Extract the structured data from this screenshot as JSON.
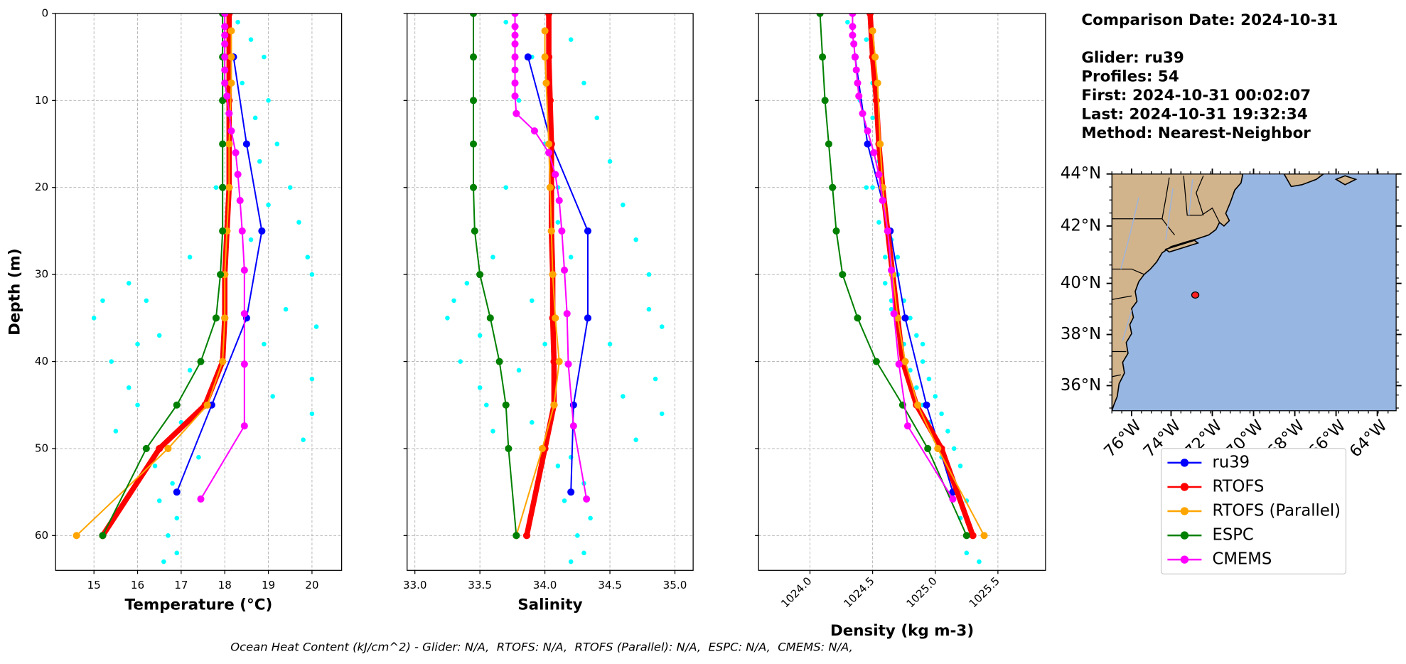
{
  "chart_data": [
    {
      "type": "profile",
      "xlabel": "Temperature (°C)",
      "ylabel": "Depth (m)",
      "xlim": [
        14.12,
        20.68
      ],
      "xticks": [
        15,
        16,
        17,
        18,
        19,
        20
      ],
      "ylim": [
        0,
        64
      ],
      "yticks": [
        0,
        10,
        20,
        30,
        40,
        50,
        60
      ],
      "y_inverted": true,
      "grid": true,
      "scatter": {
        "color": "#00ffff",
        "depth": [
          1,
          3,
          5,
          8,
          10,
          12,
          15,
          17,
          20,
          22,
          24,
          26,
          28,
          30,
          31,
          33,
          34,
          35,
          36,
          37,
          38,
          40,
          41,
          42,
          43,
          44,
          45,
          46,
          47,
          48,
          49,
          50,
          51,
          52,
          54,
          56,
          58,
          60,
          62,
          63,
          20,
          28,
          33,
          38
        ],
        "values": [
          18.3,
          18.6,
          18.9,
          18.4,
          19.0,
          18.7,
          19.2,
          18.8,
          19.5,
          19.0,
          19.7,
          18.6,
          19.9,
          20.0,
          15.8,
          15.2,
          19.4,
          15.0,
          20.1,
          16.5,
          18.9,
          15.4,
          17.2,
          20.0,
          15.8,
          19.1,
          16.0,
          20.0,
          17.0,
          15.5,
          19.8,
          16.2,
          17.4,
          16.4,
          16.8,
          16.5,
          16.9,
          16.7,
          16.9,
          16.6,
          17.8,
          17.2,
          16.2,
          16.0
        ]
      },
      "series": [
        {
          "name": "ru39",
          "color": "#0000ff",
          "depth": [
            5,
            15,
            25,
            35,
            45,
            55
          ],
          "values": [
            18.2,
            18.5,
            18.85,
            18.5,
            17.7,
            16.9
          ]
        },
        {
          "name": "RTOFS",
          "color": "#ff0000",
          "depth": [
            0,
            5,
            10,
            15,
            20,
            25,
            30,
            35,
            40,
            45,
            50,
            60
          ],
          "values": [
            18.1,
            18.1,
            18.1,
            18.1,
            18.1,
            18.05,
            18.0,
            18.0,
            17.95,
            17.55,
            16.5,
            15.2
          ]
        },
        {
          "name": "RTOFS (Parallel)",
          "color": "#ffa500",
          "depth": [
            2,
            5,
            8,
            15,
            20,
            25,
            30,
            35,
            40,
            45,
            50,
            60
          ],
          "values": [
            18.15,
            18.15,
            18.15,
            18.1,
            18.1,
            18.05,
            18.0,
            18.0,
            17.95,
            17.6,
            16.7,
            14.6
          ]
        },
        {
          "name": "ESPC",
          "color": "#008000",
          "depth": [
            0,
            5,
            10,
            15,
            20,
            25,
            30,
            35,
            40,
            45,
            50,
            60
          ],
          "values": [
            17.95,
            17.95,
            17.95,
            17.95,
            17.95,
            17.95,
            17.9,
            17.8,
            17.45,
            16.9,
            16.2,
            15.2
          ]
        },
        {
          "name": "CMEMS",
          "color": "#ff00ff",
          "depth": [
            0,
            1.5,
            2.5,
            3.5,
            5,
            6.5,
            8,
            9.5,
            11.5,
            13.5,
            16,
            18.5,
            21.5,
            25,
            29.5,
            34.5,
            40.3,
            47.4,
            55.8
          ],
          "values": [
            18.0,
            18.0,
            18.0,
            18.0,
            18.0,
            18.0,
            18.0,
            18.05,
            18.1,
            18.15,
            18.25,
            18.3,
            18.35,
            18.4,
            18.45,
            18.45,
            18.45,
            18.45,
            17.45
          ]
        }
      ]
    },
    {
      "type": "profile",
      "xlabel": "Salinity",
      "xlim": [
        32.94,
        35.14
      ],
      "xticks": [
        {
          "value": 33,
          "label": "33.0"
        },
        33.5,
        {
          "value": 34,
          "label": "34.0"
        },
        34.5,
        {
          "value": 35,
          "label": "35.0"
        }
      ],
      "scatter": {
        "color": "#00ffff",
        "depth": [
          1,
          3,
          5,
          8,
          10,
          12,
          15,
          17,
          20,
          22,
          24,
          26,
          28,
          30,
          31,
          33,
          34,
          35,
          36,
          37,
          38,
          40,
          41,
          42,
          43,
          44,
          45,
          46,
          47,
          48,
          49,
          50,
          51,
          52,
          54,
          56,
          58,
          60,
          62,
          63,
          20,
          28,
          33,
          38
        ],
        "values": [
          33.7,
          34.2,
          33.9,
          34.3,
          33.8,
          34.4,
          34.0,
          34.5,
          33.7,
          34.6,
          34.1,
          34.7,
          33.6,
          34.8,
          33.4,
          33.3,
          34.8,
          33.25,
          34.9,
          33.5,
          34.5,
          33.35,
          33.8,
          34.85,
          33.5,
          34.6,
          33.55,
          34.9,
          33.9,
          33.6,
          34.7,
          34.0,
          34.2,
          34.1,
          34.3,
          34.15,
          34.35,
          34.25,
          34.3,
          34.2,
          34.1,
          34.2,
          33.9,
          34.0
        ]
      },
      "series": [
        {
          "color": "#0000ff",
          "depth": [
            5,
            15,
            25,
            35,
            45,
            55
          ],
          "values": [
            33.87,
            34.05,
            34.33,
            34.33,
            34.22,
            34.2
          ]
        },
        {
          "color": "#ff0000",
          "depth": [
            0,
            5,
            10,
            15,
            20,
            25,
            30,
            35,
            40,
            45,
            50,
            60
          ],
          "values": [
            34.03,
            34.03,
            34.04,
            34.05,
            34.05,
            34.05,
            34.06,
            34.06,
            34.07,
            34.07,
            34.0,
            33.86
          ]
        },
        {
          "color": "#ffa500",
          "depth": [
            2,
            5,
            8,
            15,
            20,
            25,
            30,
            35,
            40,
            45,
            50,
            60
          ],
          "values": [
            34.0,
            34.0,
            34.01,
            34.03,
            34.04,
            34.05,
            34.06,
            34.08,
            34.11,
            34.07,
            33.98,
            33.78
          ]
        },
        {
          "color": "#008000",
          "depth": [
            0,
            5,
            10,
            15,
            20,
            25,
            30,
            35,
            40,
            45,
            50,
            60
          ],
          "values": [
            33.45,
            33.45,
            33.45,
            33.45,
            33.45,
            33.46,
            33.5,
            33.58,
            33.65,
            33.7,
            33.72,
            33.78
          ]
        },
        {
          "color": "#ff00ff",
          "depth": [
            0,
            1.5,
            2.5,
            3.5,
            5,
            6.5,
            8,
            9.5,
            11.5,
            13.5,
            16,
            18.5,
            21.5,
            25,
            29.5,
            34.5,
            40.3,
            47.4,
            55.8
          ],
          "values": [
            33.77,
            33.77,
            33.77,
            33.77,
            33.77,
            33.77,
            33.77,
            33.77,
            33.78,
            33.92,
            34.03,
            34.08,
            34.11,
            34.13,
            34.15,
            34.17,
            34.18,
            34.22,
            34.32
          ]
        }
      ]
    },
    {
      "type": "profile",
      "xlabel": "Density (kg m-3)",
      "xlim": [
        1023.59,
        1025.88
      ],
      "xticks": [
        {
          "value": 1024,
          "label": "1024.0"
        },
        1024.5,
        {
          "value": 1025,
          "label": "1025.0"
        },
        1025.5
      ],
      "xtick_rotation": 45,
      "scatter": {
        "color": "#00ffff",
        "depth": [
          1,
          3,
          5,
          8,
          10,
          12,
          15,
          17,
          20,
          22,
          24,
          26,
          28,
          30,
          31,
          33,
          34,
          35,
          36,
          37,
          38,
          40,
          41,
          42,
          43,
          44,
          45,
          46,
          47,
          48,
          49,
          50,
          51,
          52,
          54,
          56,
          58,
          60,
          62,
          63,
          20,
          28,
          33,
          38
        ],
        "values": [
          1024.3,
          1024.45,
          1024.35,
          1024.5,
          1024.4,
          1024.5,
          1024.45,
          1024.55,
          1024.5,
          1024.6,
          1024.55,
          1024.65,
          1024.6,
          1024.7,
          1024.6,
          1024.75,
          1024.65,
          1024.8,
          1024.7,
          1024.85,
          1024.75,
          1024.9,
          1024.8,
          1024.95,
          1024.85,
          1025.0,
          1024.9,
          1025.05,
          1024.95,
          1025.1,
          1025.0,
          1025.15,
          1025.05,
          1025.2,
          1025.15,
          1025.25,
          1025.2,
          1025.3,
          1025.25,
          1025.35,
          1024.45,
          1024.7,
          1024.65,
          1024.9
        ]
      },
      "series": [
        {
          "color": "#0000ff",
          "depth": [
            5,
            15,
            25,
            35,
            45,
            55
          ],
          "values": [
            1024.36,
            1024.46,
            1024.64,
            1024.76,
            1024.93,
            1025.14
          ]
        },
        {
          "color": "#ff0000",
          "depth": [
            0,
            5,
            10,
            15,
            20,
            25,
            30,
            35,
            40,
            45,
            50,
            60
          ],
          "values": [
            1024.48,
            1024.5,
            1024.53,
            1024.55,
            1024.58,
            1024.62,
            1024.66,
            1024.7,
            1024.74,
            1024.85,
            1025.05,
            1025.3
          ]
        },
        {
          "color": "#ffa500",
          "depth": [
            2,
            5,
            8,
            15,
            20,
            25,
            30,
            35,
            40,
            45,
            50,
            60
          ],
          "values": [
            1024.5,
            1024.52,
            1024.54,
            1024.56,
            1024.58,
            1024.62,
            1024.66,
            1024.7,
            1024.76,
            1024.86,
            1025.02,
            1025.39
          ]
        },
        {
          "color": "#008000",
          "depth": [
            0,
            5,
            10,
            15,
            20,
            25,
            30,
            35,
            40,
            45,
            50,
            60
          ],
          "values": [
            1024.08,
            1024.1,
            1024.12,
            1024.15,
            1024.18,
            1024.21,
            1024.26,
            1024.38,
            1024.53,
            1024.74,
            1024.94,
            1025.25
          ]
        },
        {
          "color": "#ff00ff",
          "depth": [
            0,
            1.5,
            2.5,
            3.5,
            5,
            6.5,
            8,
            9.5,
            11.5,
            13.5,
            16,
            18.5,
            21.5,
            25,
            29.5,
            34.5,
            40.3,
            47.4,
            55.8
          ],
          "values": [
            1024.34,
            1024.34,
            1024.34,
            1024.35,
            1024.36,
            1024.37,
            1024.38,
            1024.39,
            1024.42,
            1024.46,
            1024.51,
            1024.55,
            1024.58,
            1024.62,
            1024.65,
            1024.67,
            1024.71,
            1024.78,
            1025.14
          ]
        }
      ]
    }
  ],
  "info": [
    "Comparison Date: 2024-10-31",
    "Glider: ru39",
    "Profiles: 54",
    "First: 2024-10-31 00:02:07",
    "Last: 2024-10-31 19:32:34",
    "Method: Nearest-Neighbor"
  ],
  "map": {
    "lat_labels": [
      "44°N",
      "42°N",
      "40°N",
      "38°N",
      "36°N"
    ],
    "lon_labels": [
      "76°W",
      "74°W",
      "72°W",
      "70°W",
      "68°W",
      "66°W",
      "64°W"
    ]
  },
  "footer": "Ocean Heat Content (kJ/cm^2) - Glider: N/A,  RTOFS: N/A,  RTOFS (Parallel): N/A,  ESPC: N/A,  CMEMS: N/A,"
}
